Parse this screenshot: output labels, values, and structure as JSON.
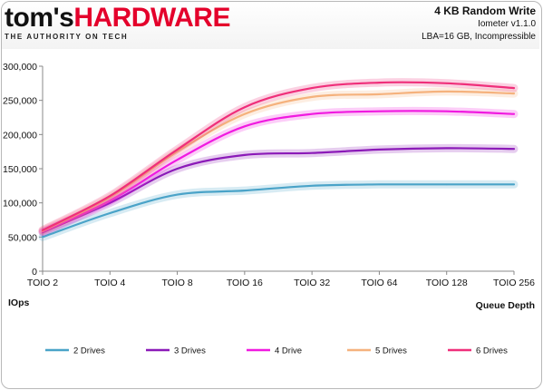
{
  "header": {
    "brand_part1": "tom's",
    "brand_part2": "HARDWARE",
    "tagline": "THE AUTHORITY ON TECH",
    "title": "4 KB Random Write",
    "subtitle_1": "Iometer v1.1.0",
    "subtitle_2": "LBA=16 GB, Incompressible"
  },
  "chart_data": {
    "type": "line",
    "title": "4 KB Random Write",
    "xlabel": "Queue Depth",
    "ylabel": "IOps",
    "categories": [
      "TOIO 2",
      "TOIO 4",
      "TOIO 8",
      "TOIO 16",
      "TOIO 32",
      "TOIO 64",
      "TOIO 128",
      "TOIO 256"
    ],
    "ylim": [
      0,
      300000
    ],
    "yticks": [
      0,
      50000,
      100000,
      150000,
      200000,
      250000,
      300000
    ],
    "ytick_labels": [
      "0",
      "50,000",
      "100,000",
      "150,000",
      "200,000",
      "250,000",
      "300,000"
    ],
    "grid": false,
    "legend_position": "bottom",
    "series": [
      {
        "name": "2 Drives",
        "color": "#4aa3c8",
        "values": [
          50000,
          85000,
          112000,
          118000,
          125000,
          127000,
          127000,
          127000
        ]
      },
      {
        "name": "3 Drives",
        "color": "#8b1ab8",
        "values": [
          57000,
          100000,
          150000,
          170000,
          173000,
          178000,
          180000,
          179000
        ]
      },
      {
        "name": "4 Drive",
        "color": "#f01ae0",
        "values": [
          58000,
          103000,
          163000,
          212000,
          230000,
          234000,
          234000,
          230000
        ]
      },
      {
        "name": "5 Drives",
        "color": "#f5b27d",
        "values": [
          59000,
          108000,
          175000,
          230000,
          255000,
          259000,
          263000,
          260000
        ]
      },
      {
        "name": "6 Drives",
        "color": "#ef2f7a",
        "values": [
          60000,
          110000,
          178000,
          240000,
          268000,
          276000,
          275000,
          268000
        ]
      }
    ]
  }
}
